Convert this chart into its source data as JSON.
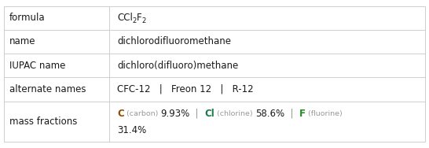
{
  "rows": [
    "formula",
    "name",
    "IUPAC name",
    "alternate names",
    "mass fractions"
  ],
  "name_value": "dichlorodifluoromethane",
  "iupac_value": "dichloro(difluoro)methane",
  "alternate_values": "CFC-12   |   Freon 12   |   R-12",
  "mass_elements": [
    {
      "symbol": "C",
      "name": "carbon",
      "value": "9.93%",
      "color": "#964B00"
    },
    {
      "symbol": "Cl",
      "name": "chlorine",
      "value": "58.6%",
      "color": "#1a7a4a"
    },
    {
      "symbol": "F",
      "name": "fluorine",
      "value": "31.4%",
      "color": "#228B22"
    }
  ],
  "col_split": 0.255,
  "bg_color": "#ffffff",
  "border_color": "#c8c8c8",
  "label_fontsize": 8.5,
  "value_fontsize": 8.5,
  "text_color": "#1a1a1a",
  "gray_color": "#999999"
}
